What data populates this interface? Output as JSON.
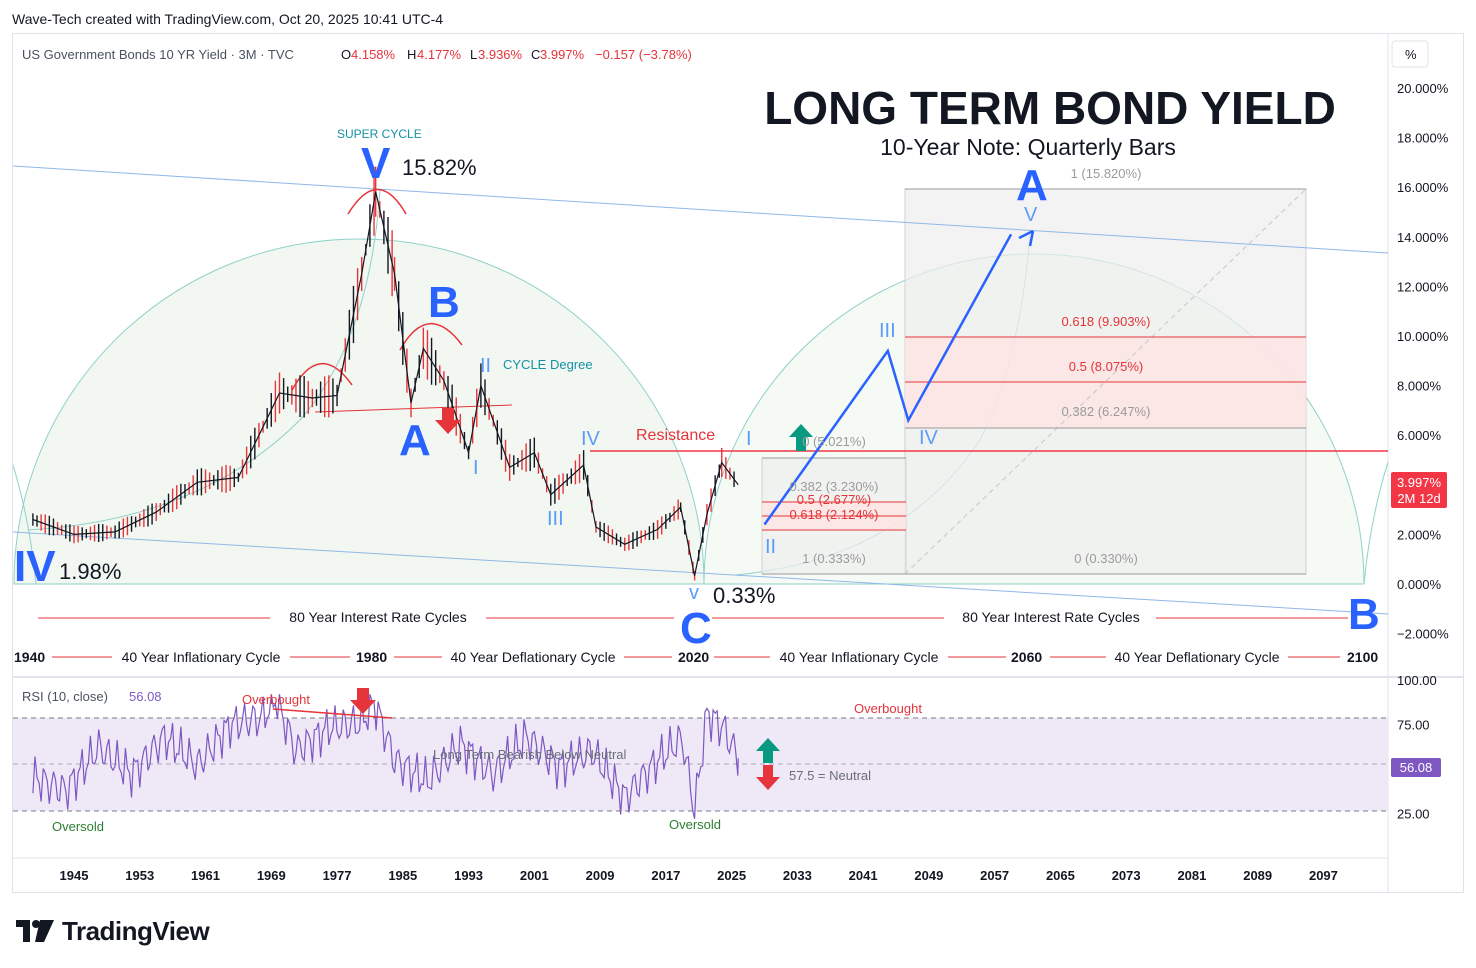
{
  "attribution": "Wave-Tech created with TradingView.com, Oct 20, 2025 10:41 UTC-4",
  "branding": {
    "logo_text": "TradingView"
  },
  "legend": {
    "symbol": "US Government Bonds 10 YR Yield · 3M · TVC",
    "o_label": "O",
    "o_value": "4.158%",
    "h_label": "H",
    "h_value": "4.177%",
    "l_label": "L",
    "l_value": "3.936%",
    "c_label": "C",
    "c_value": "3.997%",
    "change": "−0.157 (−3.78%)"
  },
  "title": "LONG TERM BOND YIELD",
  "subtitle": "10-Year Note: Quarterly Bars",
  "price_axis": {
    "unit_label": "%",
    "ticks": [
      "20.000%",
      "18.000%",
      "16.000%",
      "14.000%",
      "12.000%",
      "10.000%",
      "8.000%",
      "6.000%",
      "2.000%",
      "0.000%",
      "−2.000%"
    ],
    "last_price": "3.997%",
    "countdown": "2M 12d"
  },
  "time_axis": {
    "ticks": [
      "1945",
      "1953",
      "1961",
      "1969",
      "1977",
      "1985",
      "1993",
      "2001",
      "2009",
      "2017",
      "2025",
      "2033",
      "2041",
      "2049",
      "2057",
      "2065",
      "2073",
      "2081",
      "2089",
      "2097"
    ]
  },
  "annotations": {
    "super_cycle": "SUPER CYCLE",
    "cycle_degree": "CYCLE Degree",
    "resistance": "Resistance",
    "peak_value": "15.82%",
    "start_value": "1.98%",
    "low_value": "0.33%",
    "wave_V_top": "V",
    "wave_IV_left": "IV",
    "wave_A": "A",
    "wave_B": "B",
    "wave_C": "C",
    "wave_B_right": "B",
    "wave_A_future": "A",
    "sub_II": "II",
    "sub_I": "I",
    "sub_III": "III",
    "sub_IV": "IV",
    "sub_v_low": "v",
    "f_I": "I",
    "f_II": "II",
    "f_III": "III",
    "f_IV": "IV",
    "f_V": "V"
  },
  "fib_small": {
    "l0": "0 (5.021%)",
    "l382": "0.382 (3.230%)",
    "l5": "0.5 (2.677%)",
    "l618": "0.618 (2.124%)",
    "l1": "1 (0.333%)"
  },
  "fib_large": {
    "l1": "1 (15.820%)",
    "l618": "0.618 (9.903%)",
    "l5": "0.5 (8.075%)",
    "l382": "0.382 (6.247%)",
    "l0": "0 (0.330%)"
  },
  "cycles": {
    "rate_cycle_left": "80 Year Interest Rate Cycles",
    "rate_cycle_right": "80 Year Interest Rate Cycles",
    "years": [
      "1940",
      "1980",
      "2020",
      "2060",
      "2100"
    ],
    "c1": "40 Year Inflationary Cycle",
    "c2": "40 Year Deflationary Cycle",
    "c3": "40 Year Inflationary Cycle",
    "c4": "40 Year Deflationary Cycle"
  },
  "rsi": {
    "label": "RSI (10, close)",
    "value": "56.08",
    "ticks": [
      "100.00",
      "75.00",
      "50.00",
      "25.00"
    ],
    "overbought_left": "Overbought",
    "overbought_right": "Overbought",
    "oversold_left": "Oversold",
    "oversold_right": "Oversold",
    "bearish_note": "Long Term Bearish Below Neutral",
    "neutral_note": "57.5 = Neutral"
  },
  "colors": {
    "wave_blue": "#2962ff",
    "minor_blue": "#5b9cf6",
    "down_red": "#e5343a",
    "up_green": "#089981",
    "channel": "#8fb8e8",
    "rsi_line": "#7e57c2",
    "resistance": "#f23645"
  },
  "chart_data": {
    "type": "line",
    "title": "LONG TERM BOND YIELD",
    "subtitle": "10-Year Note: Quarterly Bars",
    "xlabel": "",
    "ylabel": "",
    "ylim": [
      -2,
      20
    ],
    "x": [
      1940,
      1945,
      1950,
      1955,
      1960,
      1965,
      1970,
      1974,
      1977,
      1980,
      1981.7,
      1984,
      1986,
      1987.5,
      1990,
      1993,
      1994.5,
      1998,
      2001,
      2003,
      2007,
      2008.5,
      2012,
      2016,
      2018.8,
      2020.5,
      2022,
      2023.8,
      2025.8
    ],
    "series": [
      {
        "name": "",
        "values": [
          2.6,
          2.0,
          2.1,
          2.9,
          4.1,
          4.3,
          7.7,
          7.5,
          7.6,
          12.5,
          15.82,
          12.5,
          7.3,
          9.5,
          8.2,
          5.3,
          8.0,
          4.7,
          5.3,
          3.6,
          4.8,
          2.3,
          1.6,
          2.2,
          3.1,
          0.33,
          2.8,
          4.9,
          4.0
        ]
      }
    ],
    "projection": {
      "x": [
        2029,
        2044,
        2046.5,
        2059
      ],
      "values": [
        2.4,
        9.4,
        6.6,
        14.1
      ]
    },
    "rsi_series": {
      "x": [
        1940,
        1944,
        1948,
        1952,
        1956,
        1960,
        1964,
        1968,
        1969.5,
        1972,
        1976,
        1980,
        1981.5,
        1984,
        1988,
        1992,
        1996,
        2000,
        2004,
        2008,
        2012,
        2016,
        2019,
        2020.5,
        2022,
        2024,
        2025.8
      ],
      "values": [
        45,
        38,
        62,
        47,
        68,
        52,
        75,
        79,
        90,
        60,
        73,
        76,
        88,
        55,
        43,
        64,
        47,
        68,
        51,
        60,
        34,
        55,
        67,
        27,
        81,
        73,
        56.08
      ]
    },
    "grid": false,
    "legend": "top-left"
  }
}
